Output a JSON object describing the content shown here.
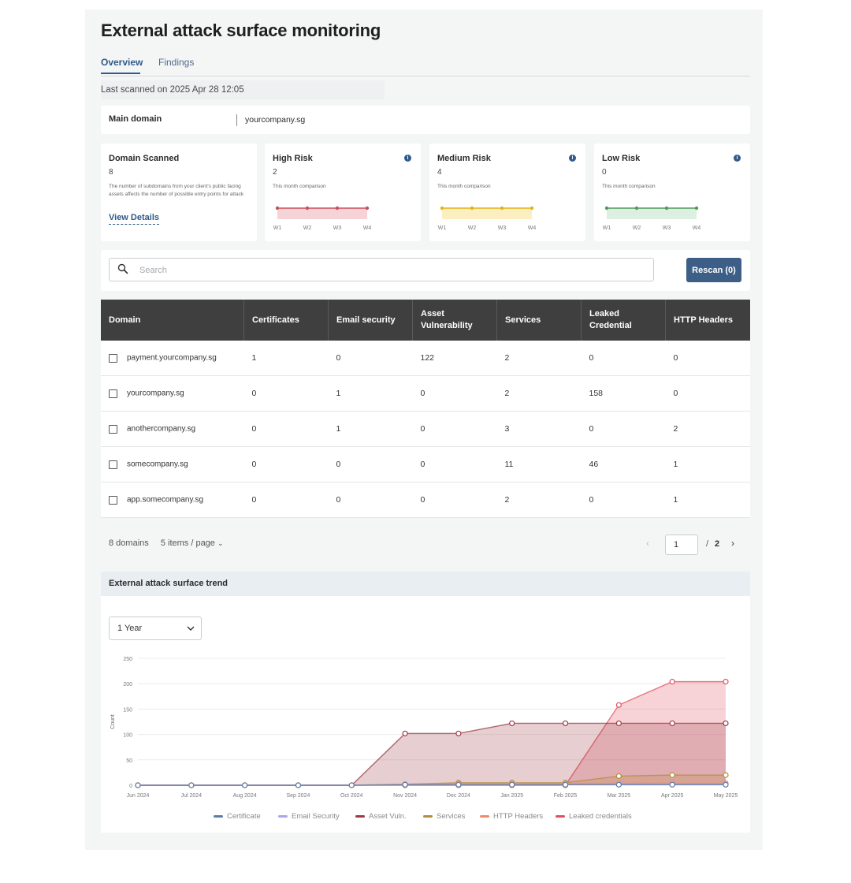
{
  "page": {
    "title": "External attack surface monitoring"
  },
  "tabs": [
    {
      "label": "Overview",
      "active": true
    },
    {
      "label": "Findings",
      "active": false
    }
  ],
  "last_scanned": "Last scanned on 2025 Apr 28 12:05",
  "main_domain": {
    "label": "Main domain",
    "value": "yourcompany.sg"
  },
  "stats": {
    "domain_scanned": {
      "title": "Domain Scanned",
      "value": "8",
      "description": "The number of subdomains from your client's public facing assets affects the number of possible entry points for attack",
      "link": "View Details"
    },
    "high": {
      "title": "High Risk",
      "value": "2",
      "comparison": "This month comparison",
      "color": "#c9505b",
      "fill": "#f6d3d6",
      "weeks": [
        "W1",
        "W2",
        "W3",
        "W4"
      ],
      "icon": "info-icon"
    },
    "medium": {
      "title": "Medium Risk",
      "value": "4",
      "comparison": "This month comparison",
      "color": "#e3b419",
      "fill": "#fbefc2",
      "weeks": [
        "W1",
        "W2",
        "W3",
        "W4"
      ],
      "icon": "info-icon"
    },
    "low": {
      "title": "Low Risk",
      "value": "0",
      "comparison": "This month comparison",
      "color": "#4f9a5f",
      "fill": "#dcefe0",
      "weeks": [
        "W1",
        "W2",
        "W3",
        "W4"
      ],
      "icon": "info-icon"
    }
  },
  "search": {
    "placeholder": "Search",
    "icon": "search-icon"
  },
  "rescan_label": "Rescan (0)",
  "table": {
    "headers": [
      "Domain",
      "Certificates",
      "Email security",
      "Asset Vulnerability",
      "Services",
      "Leaked Credential",
      "HTTP Headers"
    ],
    "rows": [
      [
        "payment.yourcompany.sg",
        "1",
        "0",
        "122",
        "2",
        "0",
        "0"
      ],
      [
        "yourcompany.sg",
        "0",
        "1",
        "0",
        "2",
        "158",
        "0"
      ],
      [
        "anothercompany.sg",
        "0",
        "1",
        "0",
        "3",
        "0",
        "2"
      ],
      [
        "somecompany.sg",
        "0",
        "0",
        "0",
        "11",
        "46",
        "1"
      ],
      [
        "app.somecompany.sg",
        "0",
        "0",
        "0",
        "2",
        "0",
        "1"
      ]
    ]
  },
  "pagination": {
    "total": "8 domains",
    "per_page": "5 items / page",
    "current": "1",
    "slash": "/",
    "pages": "2"
  },
  "trend": {
    "title": "External attack surface trend",
    "range": "1 Year"
  },
  "chart_data": {
    "type": "area",
    "x": [
      "Jun 2024",
      "Jul 2024",
      "Aug 2024",
      "Sep 2024",
      "Oct 2024",
      "Nov 2024",
      "Dec 2024",
      "Jan 2025",
      "Feb 2025",
      "Mar 2025",
      "Apr 2025",
      "May 2025"
    ],
    "ylabel": "Count",
    "ylim": [
      0,
      250
    ],
    "yticks": [
      0,
      50,
      100,
      150,
      200,
      250
    ],
    "grid": true,
    "legend": "bottom",
    "series": [
      {
        "name": "Certificate",
        "color": "#5b7ea4",
        "values": [
          0,
          0,
          0,
          0,
          0,
          1,
          1,
          1,
          1,
          1,
          1,
          1
        ]
      },
      {
        "name": "Email Security",
        "color": "#a9a6ea",
        "values": [
          0,
          0,
          0,
          0,
          0,
          1,
          1,
          1,
          1,
          2,
          2,
          2
        ]
      },
      {
        "name": "Asset Vuln.",
        "color": "#9c3b46",
        "values": [
          0,
          0,
          0,
          0,
          0,
          102,
          102,
          122,
          122,
          122,
          122,
          122
        ]
      },
      {
        "name": "Services",
        "color": "#b28d3e",
        "values": [
          0,
          0,
          0,
          0,
          0,
          2,
          5,
          5,
          5,
          18,
          20,
          20
        ]
      },
      {
        "name": "HTTP Headers",
        "color": "#ee8a6a",
        "values": [
          0,
          0,
          0,
          0,
          0,
          2,
          3,
          3,
          3,
          4,
          4,
          4
        ]
      },
      {
        "name": "Leaked credentials",
        "color": "#e0505e",
        "values": [
          0,
          0,
          0,
          0,
          0,
          0,
          0,
          0,
          0,
          158,
          204,
          204
        ]
      }
    ]
  }
}
